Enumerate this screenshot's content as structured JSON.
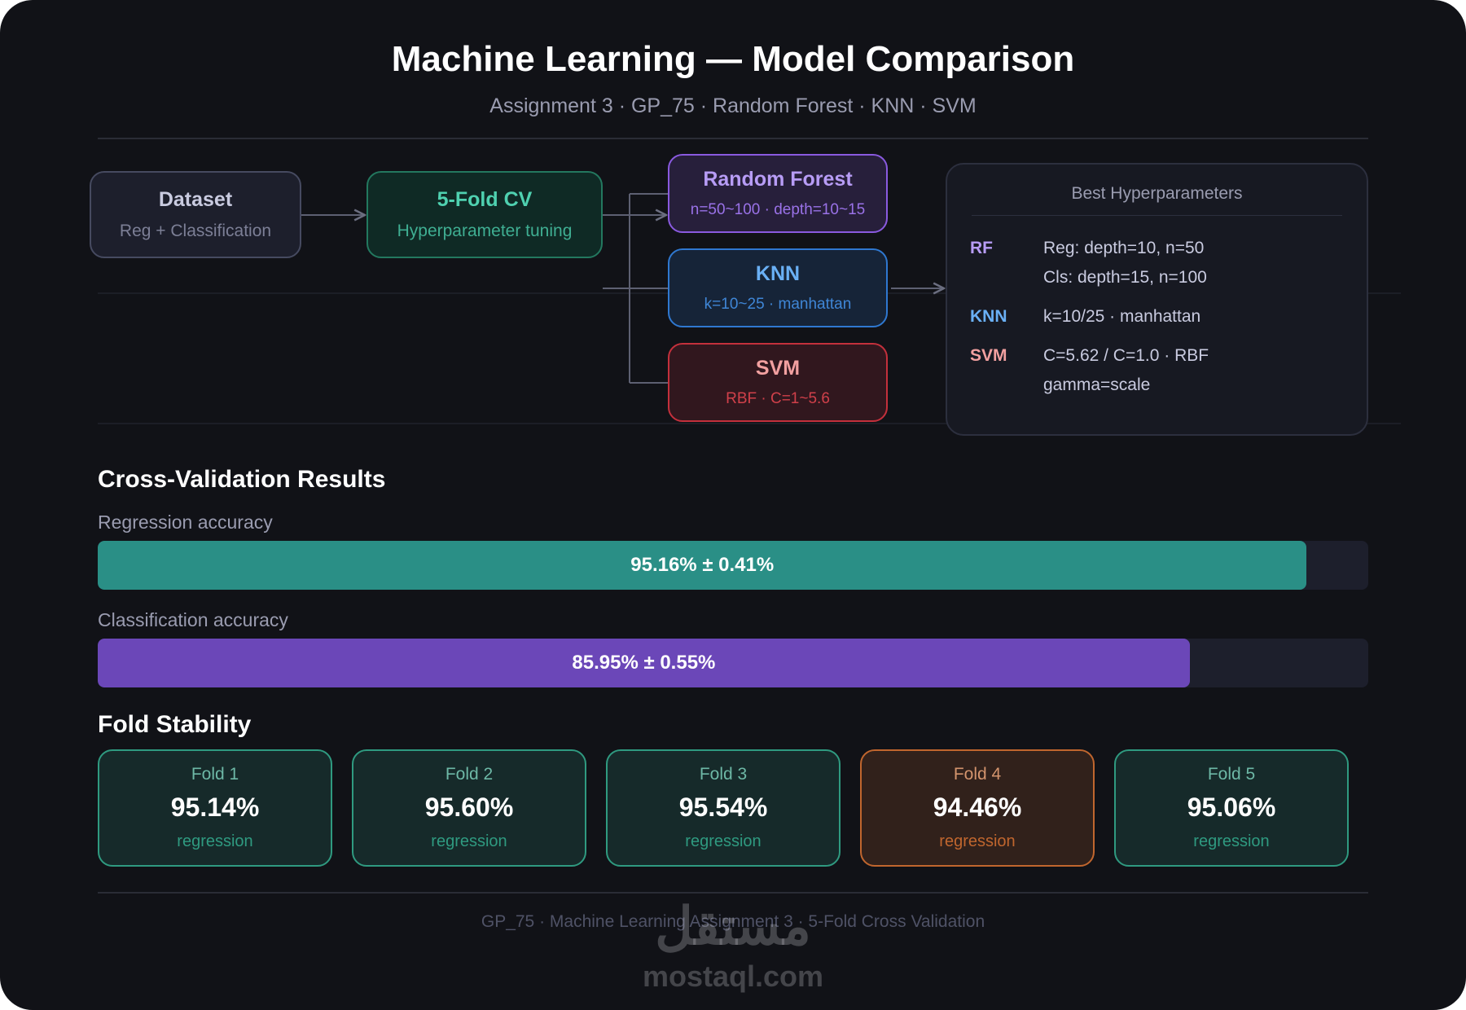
{
  "header": {
    "title": "Machine Learning — Model Comparison",
    "subtitle": "Assignment 3 · GP_75 · Random Forest · KNN · SVM"
  },
  "pipeline": {
    "dataset": {
      "title": "Dataset",
      "subtitle": "Reg + Classification"
    },
    "cv": {
      "title": "5-Fold CV",
      "subtitle": "Hyperparameter tuning"
    },
    "models": [
      {
        "name": "Random Forest",
        "detail": "n=50~100 · depth=10~15",
        "color": "#8a5ae0",
        "text_color": "#b79cf5",
        "detail_color": "#9a72e8"
      },
      {
        "name": "KNN",
        "detail": "k=10~25 · manhattan",
        "color": "#2f78d0",
        "text_color": "#6ab0f5",
        "detail_color": "#3f86d6"
      },
      {
        "name": "SVM",
        "detail": "RBF · C=1~5.6",
        "color": "#c4303c",
        "text_color": "#f2a0a0",
        "detail_color": "#d0404a"
      }
    ]
  },
  "best_hyperparameters": {
    "title": "Best Hyperparameters",
    "rows": [
      {
        "model": "RF",
        "color": "#b79cf5",
        "lines": [
          "Reg: depth=10, n=50",
          "Cls: depth=15, n=100"
        ]
      },
      {
        "model": "KNN",
        "color": "#6ab0f5",
        "lines": [
          "k=10/25 · manhattan"
        ]
      },
      {
        "model": "SVM",
        "color": "#f2a0a0",
        "lines": [
          "C=5.62 / C=1.0 · RBF",
          "gamma=scale"
        ]
      }
    ]
  },
  "results": {
    "title": "Cross-Validation Results",
    "xlim": [
      0,
      100
    ],
    "bars": [
      {
        "label": "Regression accuracy",
        "value": 95.16,
        "value_label": "95.16% ± 0.41%",
        "color": "#2a8f86"
      },
      {
        "label": "Classification accuracy",
        "value": 85.95,
        "value_label": "85.95% ± 0.55%",
        "color": "#6b47b8"
      }
    ]
  },
  "folds": {
    "title": "Fold Stability",
    "items": [
      {
        "label": "Fold 1",
        "value": "95.14%",
        "caption": "regression",
        "color": "#2f9a80"
      },
      {
        "label": "Fold 2",
        "value": "95.60%",
        "caption": "regression",
        "color": "#2f9a80"
      },
      {
        "label": "Fold 3",
        "value": "95.54%",
        "caption": "regression",
        "color": "#2f9a80"
      },
      {
        "label": "Fold 4",
        "value": "94.46%",
        "caption": "regression",
        "color": "#c0662e"
      },
      {
        "label": "Fold 5",
        "value": "95.06%",
        "caption": "regression",
        "color": "#2f9a80"
      }
    ]
  },
  "footer": {
    "text": "GP_75 · Machine Learning Assignment 3 · 5-Fold Cross Validation"
  },
  "watermark": {
    "arabic": "مستقل",
    "latin": "mostaql.com"
  }
}
